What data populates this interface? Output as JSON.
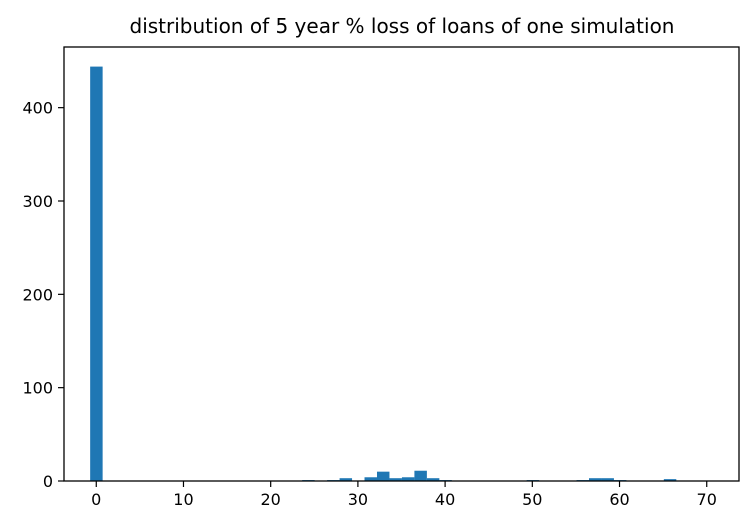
{
  "chart_data": {
    "type": "bar",
    "title": "distribution of 5 year % loss of loans of one simulation",
    "xlabel": "",
    "ylabel": "",
    "xlim": [
      -3.7,
      73.7
    ],
    "ylim": [
      0,
      465
    ],
    "xticks": [
      0,
      10,
      20,
      30,
      40,
      50,
      60,
      70
    ],
    "yticks": [
      0,
      100,
      200,
      300,
      400
    ],
    "bin_start": -0.7,
    "bin_width": 1.43,
    "values": [
      444,
      0,
      0,
      0,
      0,
      0,
      0,
      0,
      0,
      0,
      0,
      0,
      0,
      0,
      0,
      0,
      0,
      1,
      0,
      1,
      3,
      0,
      4,
      10,
      3,
      4,
      11,
      3,
      1,
      0,
      0,
      0,
      0,
      0,
      0,
      1,
      0,
      0,
      0,
      1,
      3,
      3,
      1,
      0,
      0,
      0,
      2,
      0,
      0,
      0
    ],
    "bar_color": "#1f77b4",
    "grid": false
  }
}
